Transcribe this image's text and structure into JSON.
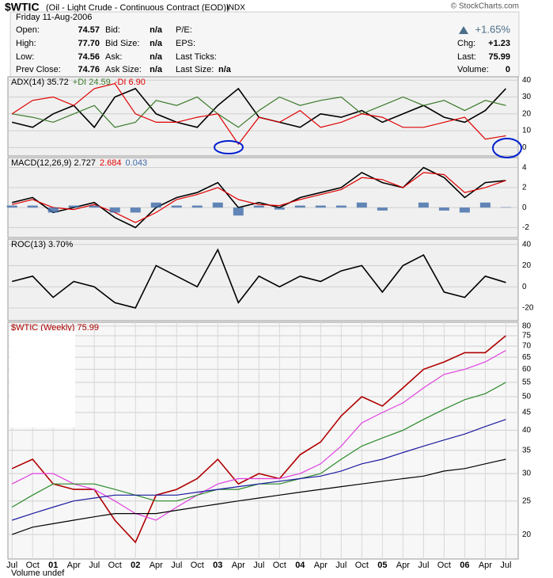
{
  "header": {
    "symbol": "$WTIC",
    "name": "(Oil - Light Crude - Continuous Contract (EOD))",
    "exchange": "INDX",
    "credit": "© StockCharts.com",
    "date": "Friday  11-Aug-2006",
    "change_pct": "+1.65%",
    "columns": [
      [
        [
          "Open:",
          "74.57"
        ],
        [
          "High:",
          "77.70"
        ],
        [
          "Low:",
          "74.56"
        ],
        [
          "Prev Close:",
          "74.76"
        ]
      ],
      [
        [
          "Bid:",
          "n/a"
        ],
        [
          "Bid Size:",
          "n/a"
        ],
        [
          "Ask:",
          "n/a"
        ],
        [
          "Ask Size:",
          "n/a"
        ]
      ],
      [
        [
          "P/E:"
        ],
        [
          "EPS:"
        ],
        [
          "Last Ticks:"
        ],
        [
          "Last Size:",
          "n/a"
        ]
      ],
      [
        [
          "Chg:",
          "+1.23"
        ],
        [
          "Last:",
          "75.99"
        ],
        [
          "Volume:",
          "0"
        ]
      ]
    ]
  },
  "volume_label": "Volume undef",
  "chart_data": [
    {
      "type": "line",
      "x": [
        2000.5,
        2000.75,
        2001,
        2001.25,
        2001.5,
        2001.75,
        2002,
        2002.25,
        2002.5,
        2002.75,
        2003,
        2003.25,
        2003.5,
        2003.75,
        2004,
        2004.25,
        2004.5,
        2004.75,
        2005,
        2005.25,
        2005.5,
        2005.75,
        2006,
        2006.25,
        2006.5
      ],
      "ylim": [
        -5,
        42
      ],
      "yticks": [
        0,
        10,
        20,
        30,
        40
      ],
      "xlim": [
        2000.45,
        2006.65
      ],
      "series": [
        {
          "name": "ADX(14) 35.72",
          "color": "#000000",
          "values": [
            15,
            12,
            20,
            25,
            12,
            30,
            35,
            20,
            15,
            12,
            25,
            35,
            18,
            15,
            12,
            20,
            18,
            22,
            15,
            20,
            25,
            18,
            15,
            22,
            35
          ]
        },
        {
          "name": "+DI 24.59",
          "color": "#3a7a2a",
          "values": [
            20,
            18,
            15,
            20,
            25,
            12,
            15,
            28,
            25,
            30,
            20,
            12,
            22,
            30,
            25,
            28,
            30,
            20,
            25,
            30,
            25,
            28,
            22,
            28,
            25
          ]
        },
        {
          "name": "-DI 6.90",
          "color": "#e00000",
          "values": [
            20,
            28,
            30,
            25,
            35,
            38,
            20,
            15,
            15,
            18,
            20,
            2,
            18,
            15,
            22,
            12,
            15,
            20,
            18,
            12,
            12,
            15,
            18,
            5,
            7
          ]
        }
      ]
    },
    {
      "type": "line",
      "x": [
        2000.5,
        2000.75,
        2001,
        2001.25,
        2001.5,
        2001.75,
        2002,
        2002.25,
        2002.5,
        2002.75,
        2003,
        2003.25,
        2003.5,
        2003.75,
        2004,
        2004.25,
        2004.5,
        2004.75,
        2005,
        2005.25,
        2005.5,
        2005.75,
        2006,
        2006.25,
        2006.5
      ],
      "ylim": [
        -3,
        5
      ],
      "yticks": [
        -2,
        0,
        2,
        4
      ],
      "xlim": [
        2000.45,
        2006.65
      ],
      "series": [
        {
          "name": "MACD(12,26,9) 2.727",
          "color": "#000000",
          "values": [
            0.5,
            1,
            -0.5,
            0,
            0.5,
            -1,
            -2,
            0,
            1,
            1.5,
            2.5,
            0,
            0.5,
            0,
            1,
            1.5,
            2,
            3.5,
            2.5,
            2,
            4,
            3,
            1,
            2.5,
            2.7
          ]
        },
        {
          "name": "2.684",
          "color": "#e00000",
          "values": [
            0.3,
            0.8,
            0,
            -0.2,
            0.3,
            -0.5,
            -1.5,
            -0.5,
            0.8,
            1.3,
            2,
            0.8,
            0.3,
            0.2,
            0.8,
            1.3,
            1.8,
            3,
            2.8,
            2,
            3.5,
            3.3,
            1.5,
            2,
            2.7
          ]
        },
        {
          "name": "0.043",
          "color": "#3d6aa8",
          "style": "bar",
          "values": [
            0.2,
            0.2,
            -0.5,
            0.2,
            0.2,
            -0.5,
            -0.5,
            0.5,
            0.2,
            0.2,
            0.5,
            -0.8,
            0.2,
            -0.2,
            0.2,
            0.2,
            0.2,
            0.5,
            -0.3,
            0,
            0.5,
            -0.3,
            -0.5,
            0.5,
            0.04
          ]
        }
      ]
    },
    {
      "type": "line",
      "x": [
        2000.5,
        2000.75,
        2001,
        2001.25,
        2001.5,
        2001.75,
        2002,
        2002.25,
        2002.5,
        2002.75,
        2003,
        2003.25,
        2003.5,
        2003.75,
        2004,
        2004.25,
        2004.5,
        2004.75,
        2005,
        2005.25,
        2005.5,
        2005.75,
        2006,
        2006.25,
        2006.5
      ],
      "ylim": [
        -32,
        45
      ],
      "yticks": [
        -20,
        0,
        20,
        40
      ],
      "xlim": [
        2000.45,
        2006.65
      ],
      "series": [
        {
          "name": "ROC(13) 3.70%",
          "color": "#000000",
          "values": [
            5,
            10,
            -10,
            5,
            0,
            -15,
            -20,
            20,
            10,
            0,
            35,
            -15,
            10,
            0,
            10,
            5,
            15,
            20,
            -5,
            20,
            30,
            -5,
            -10,
            10,
            4
          ]
        }
      ]
    },
    {
      "type": "line",
      "log": true,
      "x": [
        2000.5,
        2000.75,
        2001,
        2001.25,
        2001.5,
        2001.75,
        2002,
        2002.25,
        2002.5,
        2002.75,
        2003,
        2003.25,
        2003.5,
        2003.75,
        2004,
        2004.25,
        2004.5,
        2004.75,
        2005,
        2005.25,
        2005.5,
        2005.75,
        2006,
        2006.25,
        2006.5
      ],
      "ylim": [
        17,
        82
      ],
      "yticks": [
        20,
        25,
        30,
        35,
        40,
        45,
        50,
        55,
        60,
        65,
        70,
        75,
        80
      ],
      "xlim": [
        2000.45,
        2006.65
      ],
      "xticks": [
        {
          "value": 2000.5,
          "label": "Jul"
        },
        {
          "value": 2000.75,
          "label": "Oct"
        },
        {
          "value": 2001,
          "label": "01"
        },
        {
          "value": 2001.25,
          "label": "Apr"
        },
        {
          "value": 2001.5,
          "label": "Jul"
        },
        {
          "value": 2001.75,
          "label": "Oct"
        },
        {
          "value": 2002,
          "label": "02"
        },
        {
          "value": 2002.25,
          "label": "Apr"
        },
        {
          "value": 2002.5,
          "label": "Jul"
        },
        {
          "value": 2002.75,
          "label": "Oct"
        },
        {
          "value": 2003,
          "label": "03"
        },
        {
          "value": 2003.25,
          "label": "Apr"
        },
        {
          "value": 2003.5,
          "label": "Jul"
        },
        {
          "value": 2003.75,
          "label": "Oct"
        },
        {
          "value": 2004,
          "label": "04"
        },
        {
          "value": 2004.25,
          "label": "Apr"
        },
        {
          "value": 2004.5,
          "label": "Jul"
        },
        {
          "value": 2004.75,
          "label": "Oct"
        },
        {
          "value": 2005,
          "label": "05"
        },
        {
          "value": 2005.25,
          "label": "Apr"
        },
        {
          "value": 2005.5,
          "label": "Jul"
        },
        {
          "value": 2005.75,
          "label": "Oct"
        },
        {
          "value": 2006,
          "label": "06"
        },
        {
          "value": 2006.25,
          "label": "Apr"
        },
        {
          "value": 2006.5,
          "label": "Jul"
        }
      ],
      "series": [
        {
          "name": "$WTIC (Weekly) 75.99",
          "color": "#b00000",
          "values": [
            31,
            33,
            28,
            27,
            27,
            22,
            19,
            26,
            27,
            29,
            33,
            28,
            30,
            29,
            34,
            37,
            44,
            50,
            47,
            53,
            60,
            63,
            67,
            67,
            75
          ]
        },
        {
          "color": "#e040e0",
          "values": [
            28,
            30,
            30,
            28,
            27,
            25,
            23,
            22,
            24,
            26,
            28,
            29,
            29,
            29,
            30,
            32,
            36,
            42,
            45,
            48,
            53,
            58,
            60,
            63,
            68
          ]
        },
        {
          "color": "#2a8a2a",
          "values": [
            24,
            26,
            28,
            28,
            28,
            27,
            26,
            25,
            25,
            26,
            27,
            27,
            28,
            28,
            29,
            30,
            33,
            36,
            38,
            40,
            43,
            46,
            49,
            51,
            55
          ]
        },
        {
          "color": "#1a1aa0",
          "values": [
            22,
            23,
            24,
            25,
            25.5,
            26,
            26,
            26,
            26,
            26.5,
            27,
            27.5,
            28,
            28.5,
            29,
            29.5,
            30.5,
            32,
            33,
            34.5,
            36,
            37.5,
            39,
            41,
            43
          ]
        },
        {
          "color": "#000000",
          "values": [
            20,
            21,
            21.5,
            22,
            22.5,
            23,
            23,
            23,
            23.5,
            24,
            24.5,
            25,
            25.5,
            26,
            26.5,
            27,
            27.5,
            28,
            28.5,
            29,
            29.5,
            30.5,
            31,
            32,
            33
          ]
        }
      ]
    }
  ]
}
